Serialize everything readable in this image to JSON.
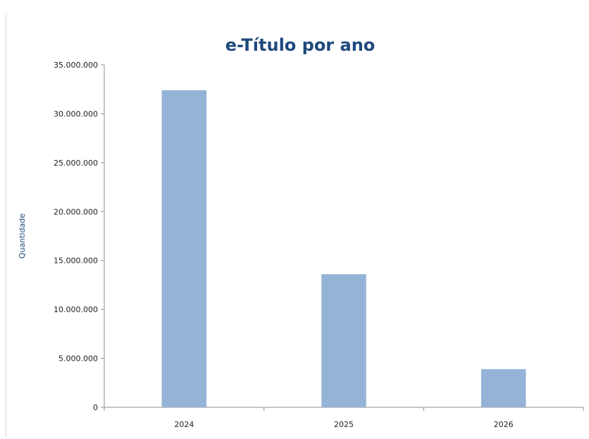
{
  "chart_data": {
    "type": "bar",
    "title": "e-Título por ano",
    "xlabel": "",
    "ylabel": "Quantidade",
    "categories": [
      "2024",
      "2025",
      "2026"
    ],
    "values": [
      32400000,
      13600000,
      3900000
    ],
    "ylim": [
      0,
      35000000
    ],
    "yticks": [
      0,
      5000000,
      10000000,
      15000000,
      20000000,
      25000000,
      30000000,
      35000000
    ],
    "ytick_labels": [
      "0",
      "5.000.000",
      "10.000.000",
      "15.000.000",
      "20.000.000",
      "25.000.000",
      "30.000.000",
      "35.000.000"
    ],
    "grid": false,
    "legend": "none",
    "bar_color": "#95b3d7",
    "title_color": "#1f497d"
  }
}
